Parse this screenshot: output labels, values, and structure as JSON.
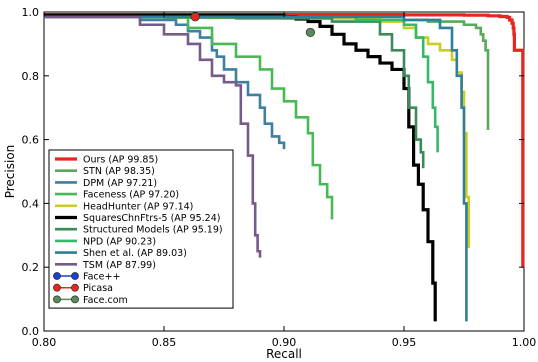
{
  "chart_data": {
    "type": "line",
    "xlabel": "Recall",
    "ylabel": "Precision",
    "xlim": [
      0.8,
      1.0
    ],
    "ylim": [
      0.0,
      1.0
    ],
    "xticks": [
      "0.80",
      "0.85",
      "0.90",
      "0.95",
      "1.00"
    ],
    "yticks": [
      "0.0",
      "0.2",
      "0.4",
      "0.6",
      "0.8",
      "1.0"
    ],
    "grid": false,
    "legend_position": "bottom-left",
    "series": [
      {
        "name": "Ours (AP 99.85)",
        "color": "#e8261f",
        "width": 3.2,
        "marker": "none",
        "x": [
          0.8,
          0.9,
          0.95,
          0.975,
          0.985,
          0.99,
          0.993,
          0.994,
          0.995,
          0.9955,
          0.9958,
          0.996,
          0.9965,
          0.999,
          0.9995
        ],
        "y": [
          0.992,
          0.992,
          0.991,
          0.99,
          0.988,
          0.986,
          0.983,
          0.975,
          0.965,
          0.95,
          0.93,
          0.88,
          0.88,
          0.88,
          0.2
        ]
      },
      {
        "name": "STN (AP 98.35)",
        "color": "#5aa85a",
        "width": 2.6,
        "marker": "none",
        "x": [
          0.8,
          0.85,
          0.9,
          0.94,
          0.96,
          0.975,
          0.98,
          0.982,
          0.983,
          0.984,
          0.985,
          0.985
        ],
        "y": [
          0.985,
          0.982,
          0.98,
          0.975,
          0.97,
          0.96,
          0.95,
          0.93,
          0.91,
          0.88,
          0.8,
          0.63
        ]
      },
      {
        "name": "DPM (AP 97.21)",
        "color": "#3f7f9f",
        "width": 2.6,
        "marker": "none",
        "x": [
          0.8,
          0.84,
          0.855,
          0.86,
          0.865,
          0.87,
          0.872,
          0.875,
          0.88,
          0.885,
          0.89,
          0.892,
          0.895,
          0.898,
          0.9
        ],
        "y": [
          0.985,
          0.975,
          0.96,
          0.94,
          0.92,
          0.88,
          0.86,
          0.82,
          0.78,
          0.74,
          0.7,
          0.65,
          0.61,
          0.59,
          0.57
        ]
      },
      {
        "name": "Faceness (AP 97.20)",
        "color": "#4bb858",
        "width": 2.6,
        "marker": "none",
        "x": [
          0.8,
          0.86,
          0.87,
          0.88,
          0.89,
          0.895,
          0.9,
          0.905,
          0.91,
          0.912,
          0.915,
          0.918,
          0.92
        ],
        "y": [
          0.985,
          0.95,
          0.9,
          0.86,
          0.82,
          0.76,
          0.72,
          0.67,
          0.62,
          0.52,
          0.46,
          0.42,
          0.35
        ]
      },
      {
        "name": "HeadHunter (AP 97.14)",
        "color": "#cccc22",
        "width": 2.6,
        "marker": "none",
        "x": [
          0.8,
          0.92,
          0.94,
          0.95,
          0.955,
          0.96,
          0.965,
          0.97,
          0.972,
          0.974,
          0.975,
          0.976,
          0.977
        ],
        "y": [
          0.985,
          0.98,
          0.97,
          0.95,
          0.92,
          0.9,
          0.88,
          0.85,
          0.81,
          0.75,
          0.62,
          0.42,
          0.26
        ]
      },
      {
        "name": "SquaresChnFtrs-5 (AP 95.24)",
        "color": "#000000",
        "width": 3.2,
        "marker": "none",
        "x": [
          0.8,
          0.9,
          0.905,
          0.91,
          0.915,
          0.92,
          0.925,
          0.93,
          0.935,
          0.94,
          0.945,
          0.95,
          0.952,
          0.954,
          0.956,
          0.958,
          0.96,
          0.962,
          0.963
        ],
        "y": [
          0.99,
          0.985,
          0.978,
          0.97,
          0.955,
          0.93,
          0.9,
          0.88,
          0.86,
          0.84,
          0.82,
          0.76,
          0.64,
          0.52,
          0.46,
          0.38,
          0.28,
          0.15,
          0.03
        ]
      },
      {
        "name": "Structured Models (AP 95.19)",
        "color": "#3a8a5a",
        "width": 2.6,
        "marker": "none",
        "x": [
          0.8,
          0.88,
          0.92,
          0.94,
          0.945,
          0.95,
          0.952,
          0.955,
          0.957,
          0.958
        ],
        "y": [
          0.985,
          0.98,
          0.97,
          0.93,
          0.88,
          0.8,
          0.7,
          0.6,
          0.56,
          0.51
        ]
      },
      {
        "name": "NPD (AP 90.23)",
        "color": "#35b868",
        "width": 2.6,
        "marker": "none",
        "x": [
          0.8,
          0.93,
          0.95,
          0.955,
          0.958,
          0.96,
          0.962,
          0.963,
          0.964
        ],
        "y": [
          0.985,
          0.975,
          0.96,
          0.92,
          0.86,
          0.78,
          0.7,
          0.64,
          0.56
        ]
      },
      {
        "name": "Shen et al. (AP 89.03)",
        "color": "#2f7e9a",
        "width": 2.6,
        "marker": "none",
        "x": [
          0.8,
          0.95,
          0.965,
          0.97,
          0.972,
          0.974,
          0.975,
          0.976
        ],
        "y": [
          0.985,
          0.975,
          0.95,
          0.88,
          0.8,
          0.7,
          0.4,
          0.03
        ]
      },
      {
        "name": "TSM (AP 87.99)",
        "color": "#765a8a",
        "width": 2.6,
        "marker": "none",
        "x": [
          0.8,
          0.84,
          0.85,
          0.86,
          0.865,
          0.87,
          0.875,
          0.88,
          0.882,
          0.885,
          0.887,
          0.888,
          0.889,
          0.89
        ],
        "y": [
          0.985,
          0.96,
          0.93,
          0.9,
          0.85,
          0.8,
          0.78,
          0.77,
          0.65,
          0.55,
          0.4,
          0.3,
          0.25,
          0.23
        ]
      },
      {
        "name": "Face++",
        "color": "#1f3fcf",
        "width": 1.5,
        "marker": "circle",
        "points": []
      },
      {
        "name": "Picasa",
        "color": "#e8261f",
        "width": 1.5,
        "marker": "circle",
        "points": [
          {
            "x": 0.863,
            "y": 0.985
          }
        ]
      },
      {
        "name": "Face.com",
        "color": "#5a8a5a",
        "width": 1.5,
        "marker": "circle",
        "points": [
          {
            "x": 0.911,
            "y": 0.936
          }
        ]
      }
    ]
  }
}
